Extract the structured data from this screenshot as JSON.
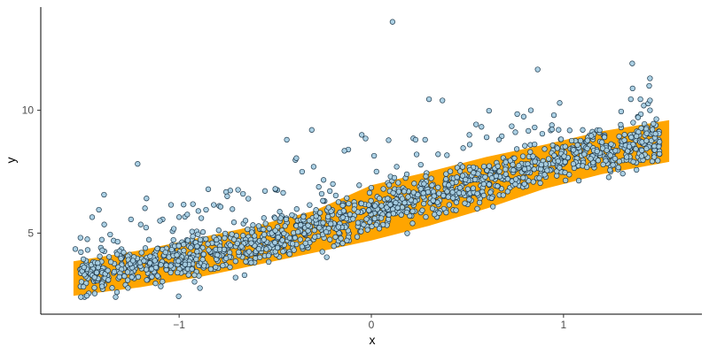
{
  "chart_data": {
    "type": "scatter",
    "title": "",
    "xlabel": "x",
    "ylabel": "y",
    "xlim": [
      -1.72,
      1.72
    ],
    "ylim": [
      1.7,
      14.2
    ],
    "x_ticks": [
      {
        "value": -1,
        "label": "−1"
      },
      {
        "value": 0,
        "label": "0"
      },
      {
        "value": 1,
        "label": "1"
      }
    ],
    "y_ticks": [
      {
        "value": 5,
        "label": "5"
      },
      {
        "value": 10,
        "label": "10"
      }
    ],
    "grid": false,
    "legend": "none",
    "point_count_approx": 1500,
    "band": {
      "x": [
        -1.55,
        -1.2,
        -0.9,
        -0.6,
        -0.3,
        0.0,
        0.3,
        0.6,
        0.9,
        1.2,
        1.55
      ],
      "lower": [
        2.45,
        2.8,
        3.2,
        3.7,
        4.2,
        4.7,
        5.3,
        6.0,
        6.8,
        7.4,
        7.9
      ],
      "upper": [
        3.85,
        4.3,
        4.8,
        5.3,
        5.9,
        6.95,
        7.5,
        8.1,
        8.6,
        9.15,
        9.6
      ]
    },
    "series": [
      {
        "points": [
          [
            0.11,
            13.6
          ],
          [
            1.45,
            11.3
          ],
          [
            0.3,
            10.45
          ],
          [
            0.37,
            10.4
          ],
          [
            1.35,
            10.45
          ],
          [
            1.4,
            10.45
          ],
          [
            1.45,
            10.4
          ],
          [
            0.98,
            10.3
          ],
          [
            1.45,
            10.0
          ],
          [
            0.83,
            10.0
          ],
          [
            1.3,
            9.95
          ],
          [
            0.95,
            9.8
          ],
          [
            -0.31,
            9.2
          ],
          [
            -0.05,
            9.0
          ],
          [
            -0.03,
            8.85
          ],
          [
            -0.44,
            8.8
          ],
          [
            0.23,
            8.8
          ],
          [
            0.28,
            8.8
          ],
          [
            -0.12,
            8.4
          ],
          [
            -0.14,
            8.35
          ],
          [
            -0.39,
            8.05
          ],
          [
            -0.36,
            7.5
          ],
          [
            -0.3,
            7.7
          ],
          [
            0.1,
            7.3
          ],
          [
            0.12,
            7.25
          ],
          [
            -0.2,
            7.0
          ],
          [
            -0.5,
            6.8
          ],
          [
            -0.75,
            6.5
          ],
          [
            -0.82,
            6.15
          ],
          [
            -0.86,
            5.95
          ],
          [
            -0.9,
            5.9
          ],
          [
            -1.0,
            5.65
          ],
          [
            -1.1,
            5.5
          ],
          [
            -1.2,
            5.35
          ],
          [
            -1.32,
            4.65
          ],
          [
            -1.39,
            5.35
          ],
          [
            -1.4,
            4.3
          ],
          [
            -1.54,
            4.35
          ],
          [
            -1.44,
            3.2
          ],
          [
            -1.48,
            2.45
          ],
          [
            -0.5,
            5.1
          ],
          [
            0.51,
            9.0
          ],
          [
            0.6,
            8.9
          ],
          [
            0.85,
            9.3
          ],
          [
            1.1,
            9.2
          ],
          [
            1.2,
            8.7
          ],
          [
            -0.64,
            6.4
          ],
          [
            0.7,
            7.4
          ]
        ]
      }
    ]
  }
}
